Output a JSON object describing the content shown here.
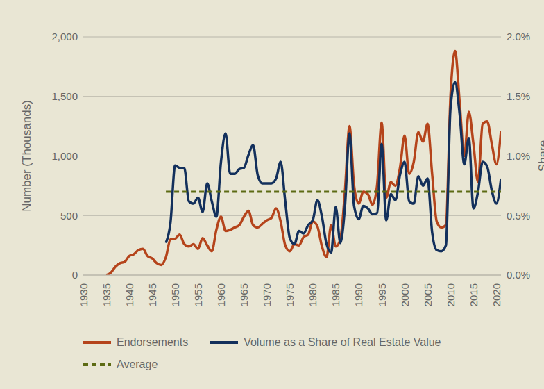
{
  "chart_data": {
    "type": "line",
    "x": [
      1935,
      1936,
      1937,
      1938,
      1939,
      1940,
      1941,
      1942,
      1943,
      1944,
      1945,
      1946,
      1947,
      1948,
      1949,
      1950,
      1951,
      1952,
      1953,
      1954,
      1955,
      1956,
      1957,
      1958,
      1959,
      1960,
      1961,
      1962,
      1963,
      1964,
      1965,
      1966,
      1967,
      1968,
      1969,
      1970,
      1971,
      1972,
      1973,
      1974,
      1975,
      1976,
      1977,
      1978,
      1979,
      1980,
      1981,
      1982,
      1983,
      1984,
      1985,
      1986,
      1987,
      1988,
      1989,
      1990,
      1991,
      1992,
      1993,
      1994,
      1995,
      1996,
      1997,
      1998,
      1999,
      2000,
      2001,
      2002,
      2003,
      2004,
      2005,
      2006,
      2007,
      2008,
      2009,
      2010,
      2011,
      2012,
      2013,
      2014,
      2015,
      2016,
      2017,
      2018,
      2019,
      2020,
      2021
    ],
    "series": [
      {
        "name": "Endorsements",
        "color": "#b5441b",
        "axis": "y",
        "line_style": "solid",
        "values": [
          0,
          20,
          70,
          100,
          110,
          160,
          175,
          210,
          220,
          160,
          140,
          100,
          85,
          150,
          300,
          305,
          340,
          260,
          240,
          260,
          220,
          310,
          250,
          200,
          380,
          490,
          370,
          380,
          400,
          420,
          490,
          540,
          420,
          400,
          430,
          460,
          480,
          560,
          450,
          250,
          200,
          260,
          250,
          320,
          340,
          450,
          410,
          240,
          150,
          420,
          240,
          300,
          700,
          1250,
          750,
          600,
          700,
          680,
          590,
          750,
          1280,
          650,
          780,
          750,
          900,
          1170,
          850,
          950,
          1200,
          1120,
          1270,
          850,
          450,
          400,
          420,
          1500,
          1880,
          1450,
          1000,
          1370,
          1100,
          780,
          1270,
          1290,
          1100,
          930,
          1210
        ]
      },
      {
        "name": "Volume as a Share of Real Estate Value",
        "color": "#13305c",
        "axis": "y2",
        "line_style": "solid",
        "values": [
          null,
          null,
          null,
          null,
          null,
          null,
          null,
          null,
          null,
          null,
          null,
          null,
          null,
          0.27,
          0.44,
          0.92,
          0.9,
          0.9,
          0.62,
          0.6,
          0.65,
          0.53,
          0.77,
          0.62,
          0.49,
          0.95,
          1.19,
          0.85,
          0.85,
          0.89,
          0.9,
          1.01,
          1.09,
          0.84,
          0.77,
          0.77,
          0.77,
          0.81,
          0.95,
          0.62,
          0.31,
          0.26,
          0.37,
          0.35,
          0.42,
          0.46,
          0.63,
          0.49,
          0.26,
          0.19,
          0.57,
          0.27,
          0.57,
          1.19,
          0.58,
          0.47,
          0.58,
          0.56,
          0.51,
          0.52,
          1.1,
          0.46,
          0.68,
          0.63,
          0.84,
          0.95,
          0.62,
          0.6,
          0.83,
          0.75,
          0.81,
          0.36,
          0.21,
          0.2,
          0.25,
          1.4,
          1.62,
          1.35,
          0.93,
          1.15,
          0.56,
          0.7,
          0.95,
          0.91,
          0.71,
          0.6,
          0.81
        ]
      },
      {
        "name": "Average",
        "color": "#5d6b14",
        "axis": "y2",
        "line_style": "dashed",
        "values": [
          null,
          null,
          null,
          null,
          null,
          null,
          null,
          null,
          null,
          null,
          null,
          null,
          null,
          0.7,
          0.7,
          0.7,
          0.7,
          0.7,
          0.7,
          0.7,
          0.7,
          0.7,
          0.7,
          0.7,
          0.7,
          0.7,
          0.7,
          0.7,
          0.7,
          0.7,
          0.7,
          0.7,
          0.7,
          0.7,
          0.7,
          0.7,
          0.7,
          0.7,
          0.7,
          0.7,
          0.7,
          0.7,
          0.7,
          0.7,
          0.7,
          0.7,
          0.7,
          0.7,
          0.7,
          0.7,
          0.7,
          0.7,
          0.7,
          0.7,
          0.7,
          0.7,
          0.7,
          0.7,
          0.7,
          0.7,
          0.7,
          0.7,
          0.7,
          0.7,
          0.7,
          0.7,
          0.7,
          0.7,
          0.7,
          0.7,
          0.7,
          0.7,
          0.7,
          0.7,
          0.7,
          0.7,
          0.7,
          0.7,
          0.7,
          0.7,
          0.7,
          0.7,
          0.7,
          0.7,
          0.7,
          0.7,
          0.7
        ]
      }
    ],
    "y_label": "Number (Thousands)",
    "y2_label": "Share",
    "xlim": [
      1930,
      2021
    ],
    "xticks": [
      1930,
      1935,
      1940,
      1945,
      1950,
      1955,
      1960,
      1965,
      1970,
      1975,
      1980,
      1985,
      1990,
      1995,
      2000,
      2005,
      2010,
      2015,
      2020
    ],
    "ylim": [
      0,
      2000
    ],
    "yticks": [
      0,
      500,
      {
        "value": 1000,
        "label": "1,000"
      },
      {
        "value": 1500,
        "label": "1,500"
      },
      {
        "value": 2000,
        "label": "2,000"
      }
    ],
    "y2lim": [
      0,
      2.0
    ],
    "y2ticks": [
      {
        "value": 0,
        "label": "0.0%"
      },
      {
        "value": 0.5,
        "label": "0.5%"
      },
      {
        "value": 1.0,
        "label": "1.0%"
      },
      {
        "value": 1.5,
        "label": "1.5%"
      },
      {
        "value": 2.0,
        "label": "2.0%"
      }
    ],
    "grid": true,
    "legend": "bottom"
  }
}
